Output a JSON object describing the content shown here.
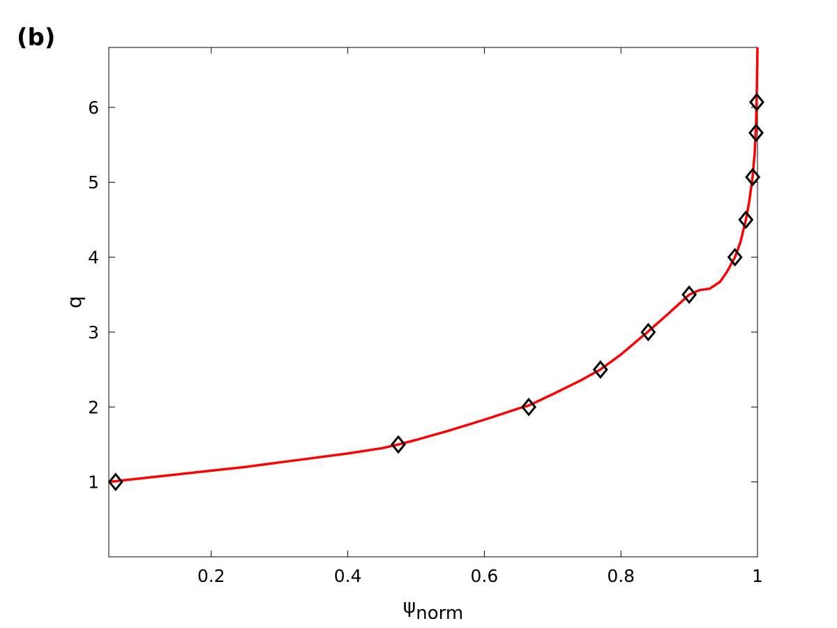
{
  "panel_label": "(b)",
  "chart_data": {
    "type": "line",
    "xlabel": "ψ",
    "xlabel_sub": "norm",
    "ylabel": "q",
    "xlim": [
      0.05,
      1.0
    ],
    "ylim": [
      0,
      6.8
    ],
    "xticks": [
      0.2,
      0.4,
      0.6,
      0.8,
      1.0
    ],
    "xtick_labels": [
      "0.2",
      "0.4",
      "0.6",
      "0.8",
      "1"
    ],
    "yticks": [
      1,
      2,
      3,
      4,
      5,
      6
    ],
    "ytick_labels": [
      "1",
      "2",
      "3",
      "4",
      "5",
      "6"
    ],
    "grid": false,
    "series": [
      {
        "kind": "line",
        "color": "#ff0000",
        "x": [
          0.05,
          0.1,
          0.15,
          0.2,
          0.25,
          0.3,
          0.35,
          0.4,
          0.45,
          0.474,
          0.5,
          0.55,
          0.6,
          0.65,
          0.665,
          0.7,
          0.74,
          0.77,
          0.8,
          0.84,
          0.87,
          0.9,
          0.915,
          0.93,
          0.945,
          0.955,
          0.967,
          0.975,
          0.983,
          0.988,
          0.993,
          0.996,
          0.998,
          0.999,
          1.0
        ],
        "y": [
          1.0,
          1.05,
          1.1,
          1.15,
          1.2,
          1.26,
          1.32,
          1.38,
          1.45,
          1.5,
          1.56,
          1.69,
          1.83,
          1.98,
          2.02,
          2.17,
          2.35,
          2.5,
          2.7,
          3.01,
          3.25,
          3.5,
          3.56,
          3.58,
          3.67,
          3.8,
          4.0,
          4.2,
          4.5,
          4.75,
          5.08,
          5.4,
          5.8,
          6.2,
          6.8
        ]
      },
      {
        "kind": "markers",
        "marker": "diamond",
        "color": "#000000",
        "x": [
          0.06,
          0.474,
          0.665,
          0.77,
          0.84,
          0.9,
          0.967,
          0.983,
          0.993,
          0.998,
          0.999
        ],
        "y": [
          1.0,
          1.5,
          2.0,
          2.5,
          3.0,
          3.5,
          4.0,
          4.5,
          5.07,
          5.66,
          6.07
        ]
      }
    ]
  }
}
